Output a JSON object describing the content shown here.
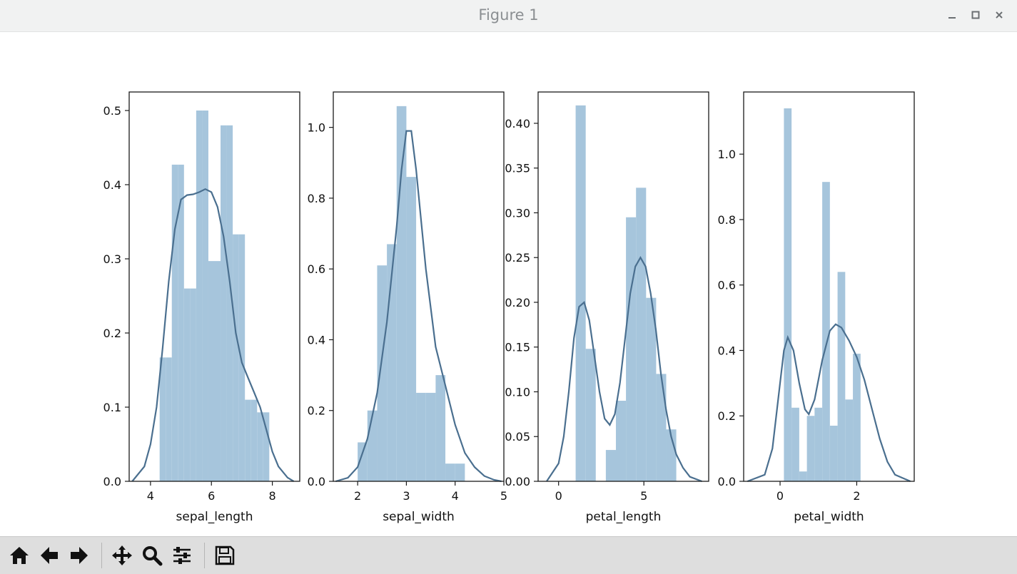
{
  "window": {
    "title": "Figure 1"
  },
  "toolbar": {
    "buttons": [
      {
        "name": "home",
        "icon": "home-icon"
      },
      {
        "name": "back",
        "icon": "arrow-left-icon"
      },
      {
        "name": "forward",
        "icon": "arrow-right-icon"
      },
      {
        "name": "pan",
        "icon": "move-icon"
      },
      {
        "name": "zoom",
        "icon": "magnifier-icon"
      },
      {
        "name": "configure",
        "icon": "sliders-icon"
      },
      {
        "name": "save",
        "icon": "floppy-disk-icon"
      }
    ]
  },
  "colors": {
    "bar": "#a6c5dc",
    "kde": "#4a6f8f",
    "axis": "#1a1a1a"
  },
  "chart_data": [
    {
      "type": "bar",
      "xlabel": "sepal_length",
      "xlim": [
        3.3,
        8.9
      ],
      "ylim": [
        0,
        0.525
      ],
      "xticks": [
        4,
        6,
        8
      ],
      "xtick_labels": [
        "4",
        "6",
        "8"
      ],
      "yticks": [
        0.0,
        0.1,
        0.2,
        0.3,
        0.4,
        0.5
      ],
      "ytick_labels": [
        "0.0",
        "0.1",
        "0.2",
        "0.3",
        "0.4",
        "0.5"
      ],
      "bin_edges": [
        4.3,
        4.5,
        4.7,
        4.9,
        5.1,
        5.3,
        5.5,
        5.7,
        5.9,
        6.1,
        6.3,
        6.5,
        6.7,
        6.9,
        7.1,
        7.3,
        7.5,
        7.7,
        7.9
      ],
      "values": [
        0.167,
        0.167,
        0.427,
        0.427,
        0.26,
        0.26,
        0.5,
        0.5,
        0.297,
        0.297,
        0.48,
        0.48,
        0.333,
        0.333,
        0.11,
        0.11,
        0.093,
        0.093
      ],
      "kde": {
        "x": [
          3.4,
          3.8,
          4.0,
          4.2,
          4.4,
          4.6,
          4.8,
          5.0,
          5.2,
          5.4,
          5.6,
          5.8,
          6.0,
          6.2,
          6.4,
          6.6,
          6.8,
          7.0,
          7.2,
          7.4,
          7.6,
          7.8,
          8.0,
          8.2,
          8.5,
          8.7
        ],
        "y": [
          0.0,
          0.02,
          0.05,
          0.1,
          0.18,
          0.27,
          0.34,
          0.38,
          0.386,
          0.387,
          0.39,
          0.394,
          0.39,
          0.37,
          0.33,
          0.27,
          0.2,
          0.16,
          0.14,
          0.12,
          0.1,
          0.07,
          0.04,
          0.02,
          0.005,
          0.0
        ]
      }
    },
    {
      "type": "bar",
      "xlabel": "sepal_width",
      "xlim": [
        1.5,
        5.0
      ],
      "ylim": [
        0,
        1.1
      ],
      "xticks": [
        2,
        3,
        4,
        5
      ],
      "xtick_labels": [
        "2",
        "3",
        "4",
        "5"
      ],
      "yticks": [
        0.0,
        0.2,
        0.4,
        0.6,
        0.8,
        1.0
      ],
      "ytick_labels": [
        "0.0",
        "0.2",
        "0.4",
        "0.6",
        "0.8",
        "1.0"
      ],
      "bin_edges": [
        2.0,
        2.2,
        2.4,
        2.6,
        2.8,
        3.0,
        3.2,
        3.4,
        3.6,
        3.8,
        4.0,
        4.2,
        4.4
      ],
      "values": [
        0.11,
        0.2,
        0.61,
        0.67,
        1.06,
        0.86,
        0.25,
        0.25,
        0.3,
        0.05,
        0.05,
        0.0
      ],
      "kde": {
        "x": [
          1.55,
          1.8,
          2.0,
          2.2,
          2.4,
          2.6,
          2.8,
          2.9,
          3.0,
          3.1,
          3.2,
          3.4,
          3.6,
          3.8,
          4.0,
          4.2,
          4.4,
          4.6,
          4.8,
          4.95
        ],
        "y": [
          0.0,
          0.01,
          0.04,
          0.12,
          0.25,
          0.45,
          0.72,
          0.88,
          0.99,
          0.99,
          0.88,
          0.6,
          0.38,
          0.27,
          0.16,
          0.08,
          0.04,
          0.015,
          0.004,
          0.0
        ]
      }
    },
    {
      "type": "bar",
      "xlabel": "petal_length",
      "xlim": [
        -1.2,
        8.8
      ],
      "ylim": [
        0,
        0.435
      ],
      "xticks": [
        0,
        5
      ],
      "xtick_labels": [
        "0",
        "5"
      ],
      "yticks": [
        0.0,
        0.05,
        0.1,
        0.15,
        0.2,
        0.25,
        0.3,
        0.35,
        0.4
      ],
      "ytick_labels": [
        "0.00",
        "0.05",
        "0.10",
        "0.15",
        "0.20",
        "0.25",
        "0.30",
        "0.35",
        "0.40"
      ],
      "bin_edges": [
        1.0,
        1.59,
        2.18,
        2.77,
        3.36,
        3.95,
        4.54,
        5.13,
        5.72,
        6.31,
        6.9
      ],
      "values": [
        0.42,
        0.148,
        0.0,
        0.035,
        0.09,
        0.295,
        0.328,
        0.205,
        0.12,
        0.058
      ],
      "kde": {
        "x": [
          -0.7,
          0.0,
          0.3,
          0.6,
          0.9,
          1.2,
          1.5,
          1.8,
          2.1,
          2.4,
          2.7,
          3.0,
          3.3,
          3.6,
          3.9,
          4.2,
          4.5,
          4.8,
          5.1,
          5.4,
          5.7,
          6.0,
          6.3,
          6.6,
          6.9,
          7.3,
          7.7,
          8.4
        ],
        "y": [
          0.0,
          0.02,
          0.05,
          0.1,
          0.16,
          0.195,
          0.2,
          0.18,
          0.14,
          0.1,
          0.07,
          0.063,
          0.075,
          0.11,
          0.16,
          0.21,
          0.24,
          0.25,
          0.24,
          0.21,
          0.17,
          0.12,
          0.08,
          0.05,
          0.03,
          0.015,
          0.005,
          0.0
        ]
      }
    },
    {
      "type": "bar",
      "xlabel": "petal_width",
      "xlim": [
        -0.95,
        3.5
      ],
      "ylim": [
        0,
        1.19
      ],
      "xticks": [
        0,
        2
      ],
      "xtick_labels": [
        "0",
        "2"
      ],
      "yticks": [
        0.0,
        0.2,
        0.4,
        0.6,
        0.8,
        1.0
      ],
      "ytick_labels": [
        "0.0",
        "0.2",
        "0.4",
        "0.6",
        "0.8",
        "1.0"
      ],
      "bin_edges": [
        0.1,
        0.3,
        0.5,
        0.7,
        0.9,
        1.1,
        1.3,
        1.5,
        1.7,
        1.9,
        2.1,
        2.3,
        2.5
      ],
      "values": [
        1.14,
        0.225,
        0.03,
        0.2,
        0.225,
        0.915,
        0.17,
        0.64,
        0.25,
        0.39,
        0.0,
        0.0
      ],
      "kde": {
        "x": [
          -0.85,
          -0.4,
          -0.2,
          0.0,
          0.1,
          0.2,
          0.35,
          0.5,
          0.65,
          0.75,
          0.9,
          1.1,
          1.3,
          1.45,
          1.6,
          1.8,
          2.0,
          2.2,
          2.4,
          2.6,
          2.8,
          3.0,
          3.4
        ],
        "y": [
          0.0,
          0.02,
          0.1,
          0.3,
          0.4,
          0.44,
          0.4,
          0.3,
          0.22,
          0.205,
          0.25,
          0.37,
          0.46,
          0.48,
          0.47,
          0.43,
          0.38,
          0.31,
          0.22,
          0.13,
          0.06,
          0.02,
          0.0
        ]
      }
    }
  ]
}
